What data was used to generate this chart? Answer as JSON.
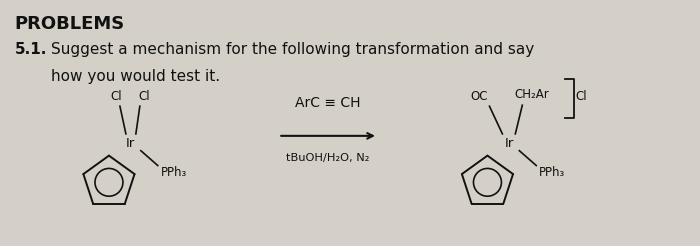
{
  "background_color": "#d4d0c8",
  "title": "PROBLEMS",
  "title_fontsize": 13,
  "problem_number": "5.1.",
  "problem_text_line1": "Suggest a mechanism for the following transformation and say",
  "problem_text_line2": "how you would test it.",
  "text_fontsize": 11,
  "text_color": "#111111",
  "reagent_line1": "ArC ≡ CH",
  "reagent_line2": "tBuOH/H₂O, N₂",
  "reactant_Cl1": "Cl",
  "reactant_Cl2": "Cl",
  "reactant_Ir": "Ir",
  "reactant_PPh3": "PPh₃",
  "product_OC": "OC",
  "product_CH2Ar": "CH₂Ar",
  "product_Cl": "Cl",
  "product_Ir": "Ir",
  "product_PPh3": "PPh₃"
}
